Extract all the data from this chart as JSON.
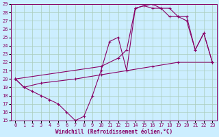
{
  "xlabel": "Windchill (Refroidissement éolien,°C)",
  "bg_color": "#cceeff",
  "grid_color": "#aaccbb",
  "line_color": "#880066",
  "xlim": [
    -0.5,
    23.5
  ],
  "ylim": [
    15,
    29
  ],
  "xticks": [
    0,
    1,
    2,
    3,
    4,
    5,
    6,
    7,
    8,
    9,
    10,
    11,
    12,
    13,
    14,
    15,
    16,
    17,
    18,
    19,
    20,
    21,
    22,
    23
  ],
  "yticks": [
    15,
    16,
    17,
    18,
    19,
    20,
    21,
    22,
    23,
    24,
    25,
    26,
    27,
    28,
    29
  ],
  "series1": [
    [
      0,
      20.0
    ],
    [
      1,
      19.0
    ],
    [
      2,
      18.5
    ],
    [
      3,
      18.0
    ],
    [
      4,
      17.5
    ],
    [
      5,
      17.0
    ],
    [
      6,
      16.0
    ],
    [
      7,
      15.0
    ],
    [
      8,
      15.5
    ],
    [
      9,
      18.0
    ],
    [
      10,
      21.0
    ],
    [
      11,
      24.5
    ],
    [
      12,
      25.0
    ],
    [
      13,
      21.0
    ],
    [
      14,
      28.5
    ],
    [
      15,
      28.8
    ],
    [
      16,
      29.0
    ],
    [
      17,
      28.5
    ],
    [
      18,
      28.5
    ],
    [
      19,
      27.5
    ],
    [
      20,
      27.0
    ],
    [
      21,
      23.5
    ],
    [
      22,
      25.5
    ],
    [
      23,
      22.0
    ]
  ],
  "series2": [
    [
      0,
      20.0
    ],
    [
      1,
      19.0
    ],
    [
      3,
      19.5
    ],
    [
      7,
      20.0
    ],
    [
      10,
      20.5
    ],
    [
      13,
      21.0
    ],
    [
      16,
      21.5
    ],
    [
      19,
      22.0
    ],
    [
      23,
      22.0
    ]
  ],
  "series3": [
    [
      0,
      20.0
    ],
    [
      10,
      21.5
    ],
    [
      12,
      22.5
    ],
    [
      13,
      23.5
    ],
    [
      14,
      28.5
    ],
    [
      15,
      28.8
    ],
    [
      16,
      28.5
    ],
    [
      17,
      28.5
    ],
    [
      18,
      27.5
    ],
    [
      19,
      27.5
    ],
    [
      20,
      27.5
    ],
    [
      21,
      23.5
    ],
    [
      22,
      25.5
    ],
    [
      23,
      22.0
    ]
  ]
}
